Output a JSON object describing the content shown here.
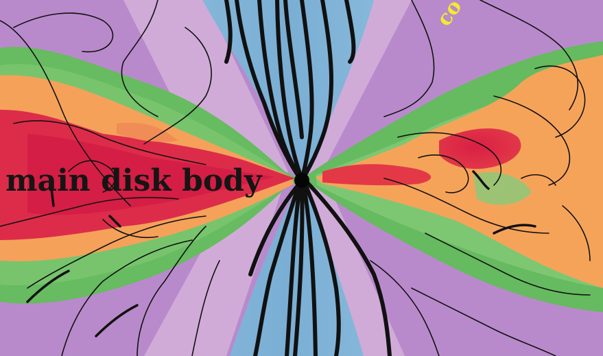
{
  "annotations": {
    "main_label": "main disk body",
    "corner_label": "co"
  },
  "colors": {
    "purple": "#b989c9",
    "blue": "#7fb2d6",
    "green": "#62b85e",
    "orange": "#f5a259",
    "red": "#dc2d47",
    "label_yellow": "#f4ec2a",
    "streamline": "#111111"
  }
}
